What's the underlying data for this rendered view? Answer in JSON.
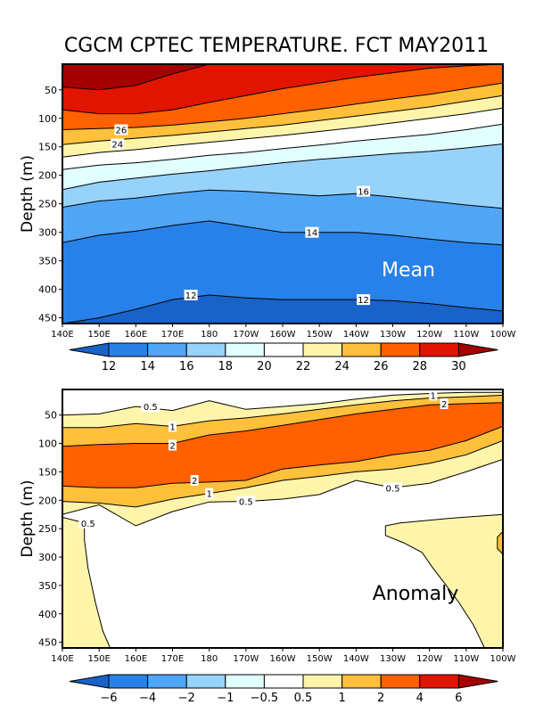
{
  "chart_data": [
    {
      "type": "heatmap",
      "subtype": "filled-contour depth-longitude section",
      "title": "CGCM CPTEC TEMPERATURE. FCT MAY2011",
      "panel_label": "Mean",
      "panel_label_color": "#ffffff",
      "xlabel": "",
      "ylabel": "Depth (m)",
      "x_ticks": [
        "140E",
        "150E",
        "160E",
        "170E",
        "180",
        "170W",
        "160W",
        "150W",
        "140W",
        "130W",
        "120W",
        "110W",
        "100W"
      ],
      "x_range": [
        140,
        260
      ],
      "y_ticks": [
        50,
        100,
        150,
        200,
        250,
        300,
        350,
        400,
        450
      ],
      "y_range": [
        5,
        460
      ],
      "y_inverted": true,
      "x_nodes": [
        140,
        150,
        160,
        170,
        180,
        190,
        200,
        210,
        220,
        230,
        240,
        250,
        260
      ],
      "isolines": [
        {
          "level": 12,
          "depths": [
            470,
            450,
            435,
            418,
            410,
            415,
            418,
            418,
            418,
            420,
            425,
            432,
            438
          ]
        },
        {
          "level": 14,
          "depths": [
            318,
            305,
            298,
            288,
            280,
            290,
            300,
            300,
            300,
            305,
            312,
            318,
            322
          ]
        },
        {
          "level": 16,
          "depths": [
            256,
            245,
            240,
            232,
            226,
            228,
            232,
            236,
            232,
            238,
            245,
            252,
            258
          ]
        },
        {
          "level": 18,
          "depths": [
            225,
            212,
            205,
            198,
            192,
            185,
            178,
            172,
            167,
            162,
            158,
            152,
            145
          ]
        },
        {
          "level": 20,
          "depths": [
            190,
            182,
            178,
            172,
            165,
            160,
            153,
            147,
            140,
            134,
            128,
            120,
            110
          ]
        },
        {
          "level": 22,
          "depths": [
            168,
            160,
            155,
            148,
            142,
            136,
            130,
            123,
            116,
            108,
            100,
            92,
            82
          ]
        },
        {
          "level": 24,
          "depths": [
            146,
            140,
            135,
            130,
            124,
            118,
            112,
            104,
            96,
            88,
            80,
            70,
            60
          ]
        },
        {
          "level": 26,
          "depths": [
            120,
            118,
            116,
            112,
            106,
            100,
            92,
            84,
            75,
            66,
            58,
            48,
            38
          ]
        },
        {
          "level": 28,
          "depths": [
            85,
            92,
            92,
            85,
            72,
            60,
            48,
            38,
            28,
            20,
            12,
            8,
            5
          ]
        },
        {
          "level": 30,
          "depths": [
            45,
            50,
            42,
            22,
            5,
            5,
            5,
            5,
            5,
            5,
            5,
            5,
            5
          ]
        }
      ],
      "contour_labels": [
        {
          "text": "26",
          "lon": 156,
          "depth": 120
        },
        {
          "text": "24",
          "lon": 155,
          "depth": 145
        },
        {
          "text": "16",
          "lon": 222,
          "depth": 228
        },
        {
          "text": "14",
          "lon": 208,
          "depth": 300
        },
        {
          "text": "12",
          "lon": 175,
          "depth": 410
        },
        {
          "text": "12",
          "lon": 222,
          "depth": 418
        }
      ],
      "colorbar": {
        "ticks": [
          "12",
          "14",
          "16",
          "18",
          "20",
          "22",
          "24",
          "26",
          "28",
          "30"
        ],
        "colors": [
          "#1862c8",
          "#2881e8",
          "#50a5f5",
          "#96d2fa",
          "#e1ffff",
          "#ffffff",
          "#fff5aa",
          "#ffc03c",
          "#ff6000",
          "#e11400",
          "#a50000"
        ]
      }
    },
    {
      "type": "heatmap",
      "subtype": "filled-contour depth-longitude section",
      "title": "",
      "panel_label": "Anomaly",
      "panel_label_color": "#000000",
      "xlabel": "",
      "ylabel": "Depth (m)",
      "x_ticks": [
        "140E",
        "150E",
        "160E",
        "170E",
        "180",
        "170W",
        "160W",
        "150W",
        "140W",
        "130W",
        "120W",
        "110W",
        "100W"
      ],
      "x_range": [
        140,
        260
      ],
      "y_ticks": [
        50,
        100,
        150,
        200,
        250,
        300,
        350,
        400,
        450
      ],
      "y_range": [
        5,
        460
      ],
      "y_inverted": true,
      "x_nodes": [
        140,
        150,
        160,
        170,
        180,
        190,
        200,
        210,
        220,
        230,
        240,
        250,
        260
      ],
      "bands": [
        {
          "level": 0.5,
          "top": [
            50,
            48,
            35,
            42,
            25,
            40,
            35,
            30,
            22,
            15,
            12,
            10,
            10
          ],
          "bottom": [
            225,
            208,
            245,
            220,
            203,
            202,
            198,
            190,
            165,
            178,
            170,
            150,
            128
          ]
        },
        {
          "level": 1,
          "top": [
            72,
            72,
            65,
            70,
            60,
            55,
            48,
            40,
            32,
            25,
            20,
            18,
            15
          ],
          "bottom": [
            202,
            205,
            212,
            198,
            188,
            178,
            165,
            158,
            150,
            145,
            135,
            120,
            95
          ]
        },
        {
          "level": 2,
          "top": [
            105,
            102,
            100,
            100,
            85,
            78,
            68,
            58,
            48,
            40,
            32,
            30,
            28
          ],
          "bottom": [
            175,
            178,
            178,
            170,
            168,
            165,
            145,
            138,
            132,
            120,
            112,
            95,
            70
          ]
        }
      ],
      "blobs": [
        {
          "level": 0.5,
          "description": "western lower region 140E-152E below 250m"
        },
        {
          "level": 0.5,
          "description": "eastern region 125W-100W below 230m"
        },
        {
          "level": 1,
          "description": "small patch at 100W ~260-290m"
        }
      ],
      "contour_labels": [
        {
          "text": "0.5",
          "lon": 164,
          "depth": 35
        },
        {
          "text": "1",
          "lon": 170,
          "depth": 70
        },
        {
          "text": "2",
          "lon": 170,
          "depth": 103
        },
        {
          "text": "2",
          "lon": 176,
          "depth": 165
        },
        {
          "text": "1",
          "lon": 180,
          "depth": 188
        },
        {
          "text": "0.5",
          "lon": 190,
          "depth": 202
        },
        {
          "text": "0.5",
          "lon": 147,
          "depth": 240
        },
        {
          "text": "0.5",
          "lon": 230,
          "depth": 178
        },
        {
          "text": "1",
          "lon": 241,
          "depth": 15
        },
        {
          "text": "2",
          "lon": 244,
          "depth": 30
        }
      ],
      "colorbar": {
        "ticks": [
          "−6",
          "−4",
          "−2",
          "−1",
          "−0.5",
          "0.5",
          "1",
          "2",
          "4",
          "6"
        ],
        "colors": [
          "#1862c8",
          "#2881e8",
          "#50a5f5",
          "#96d2fa",
          "#e1ffff",
          "#ffffff",
          "#fff5aa",
          "#ffc03c",
          "#ff6000",
          "#e11400",
          "#a50000"
        ]
      }
    }
  ]
}
